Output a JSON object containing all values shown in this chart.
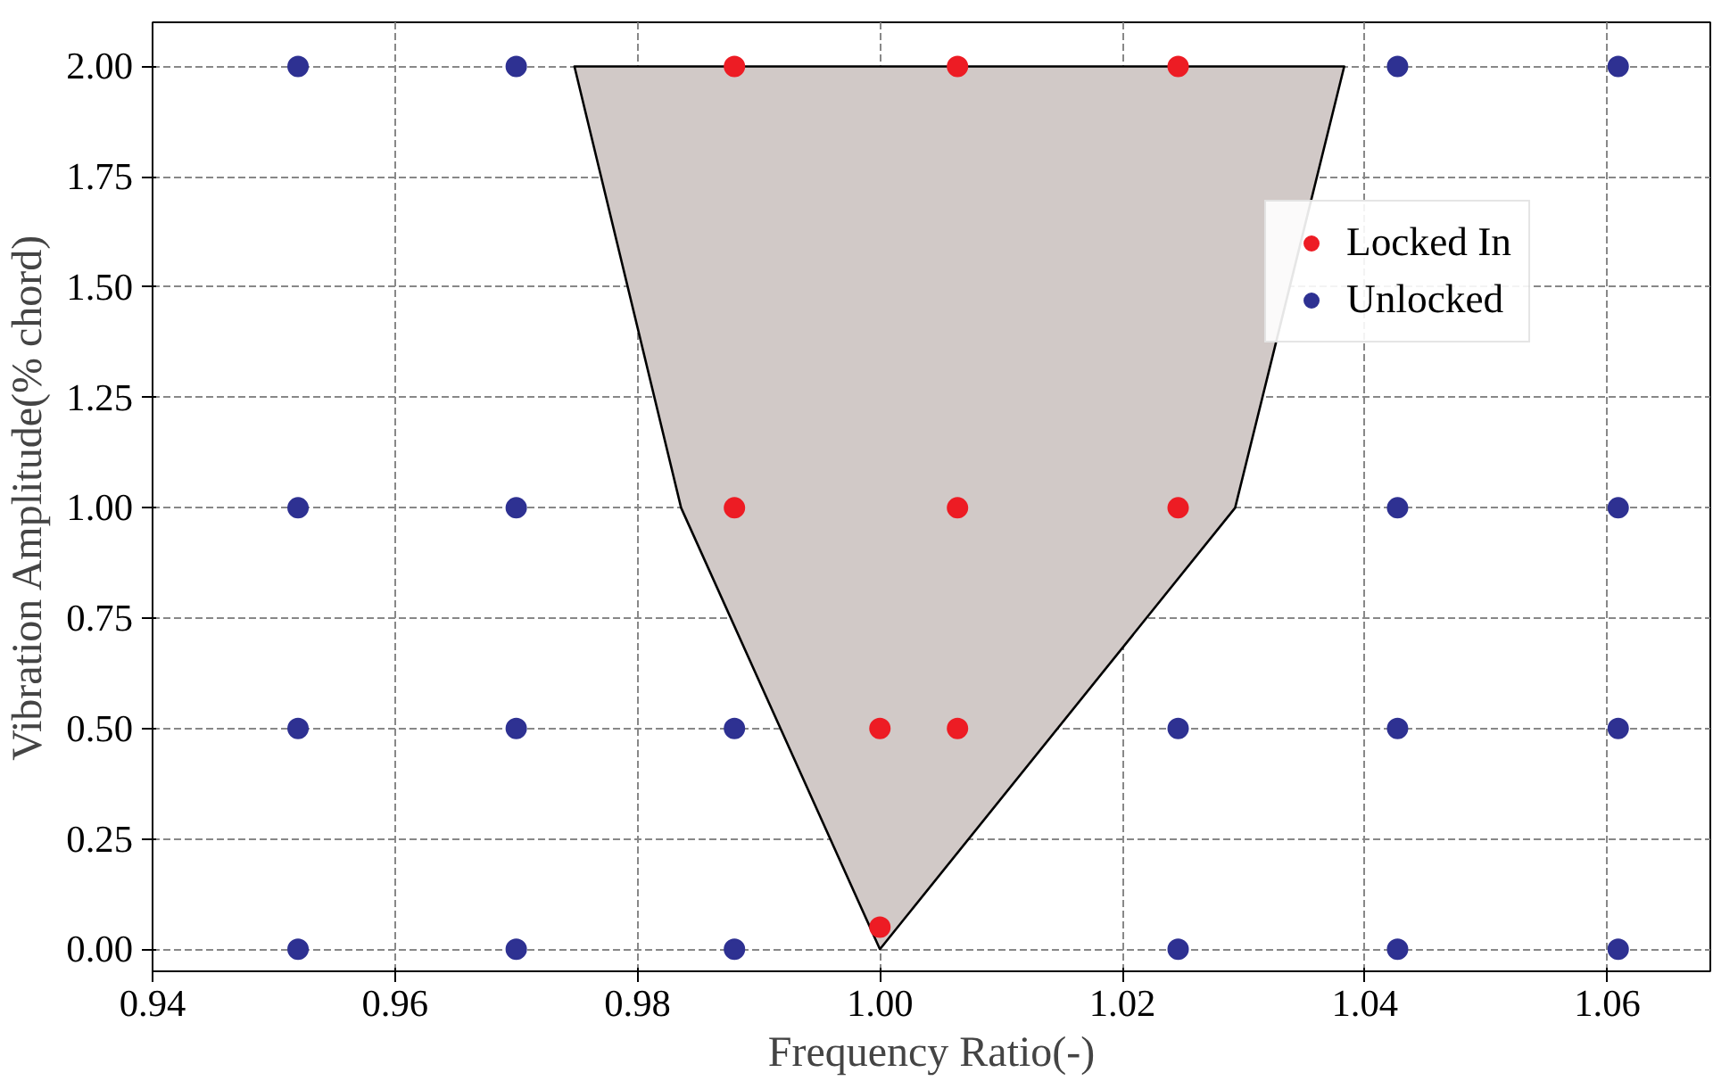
{
  "chart_data": {
    "type": "scatter",
    "xlabel": "Frequency Ratio(-)",
    "ylabel": "Vibration Amplitude(% chord)",
    "xlim": [
      0.94,
      1.0685
    ],
    "ylim": [
      -0.05,
      2.1
    ],
    "xticks": [
      {
        "value": 0.94,
        "label": "0.94"
      },
      {
        "value": 0.96,
        "label": "0.96"
      },
      {
        "value": 0.98,
        "label": "0.98"
      },
      {
        "value": 1.0,
        "label": "1.00"
      },
      {
        "value": 1.02,
        "label": "1.02"
      },
      {
        "value": 1.04,
        "label": "1.04"
      },
      {
        "value": 1.06,
        "label": "1.06"
      }
    ],
    "yticks": [
      {
        "value": 0,
        "label": "0.00"
      },
      {
        "value": 0.25,
        "label": "0.25"
      },
      {
        "value": 0.5,
        "label": "0.50"
      },
      {
        "value": 0.75,
        "label": "0.75"
      },
      {
        "value": 1.0,
        "label": "1.00"
      },
      {
        "value": 1.25,
        "label": "1.25"
      },
      {
        "value": 1.5,
        "label": "1.50"
      },
      {
        "value": 1.75,
        "label": "1.75"
      },
      {
        "value": 2.0,
        "label": "2.00"
      }
    ],
    "grid": true,
    "legend": "top right",
    "series": [
      {
        "type": "area",
        "color": "#d1c9c7",
        "x": [
          0.9748,
          0.9836,
          1.0,
          1.0293,
          1.0383
        ],
        "values": [
          2.0,
          1.0,
          0.0,
          1.0,
          2.0
        ]
      },
      {
        "name": "Locked In",
        "color": "#ed1c24",
        "marker": "circle",
        "x": [
          0.988,
          1.0064,
          1.0246,
          0.988,
          1.0064,
          1.0246,
          1.0,
          1.0064,
          1.0
        ],
        "values": [
          2,
          2,
          2,
          1,
          1,
          1,
          0.5,
          0.5,
          0.05
        ]
      },
      {
        "name": "Unlocked",
        "color": "#2e3192",
        "marker": "circle",
        "x": [
          0.952,
          0.97,
          1.0427,
          1.0609,
          0.952,
          0.97,
          1.0427,
          1.0609,
          0.952,
          0.97,
          0.988,
          1.0246,
          1.0427,
          1.0609,
          0.952,
          0.97,
          0.988,
          1.0246,
          1.0427,
          1.0609
        ],
        "values": [
          2,
          2,
          2,
          2,
          1,
          1,
          1,
          1,
          0.5,
          0.5,
          0.5,
          0.5,
          0.5,
          0.5,
          0,
          0,
          0,
          0,
          0,
          0
        ]
      }
    ]
  }
}
